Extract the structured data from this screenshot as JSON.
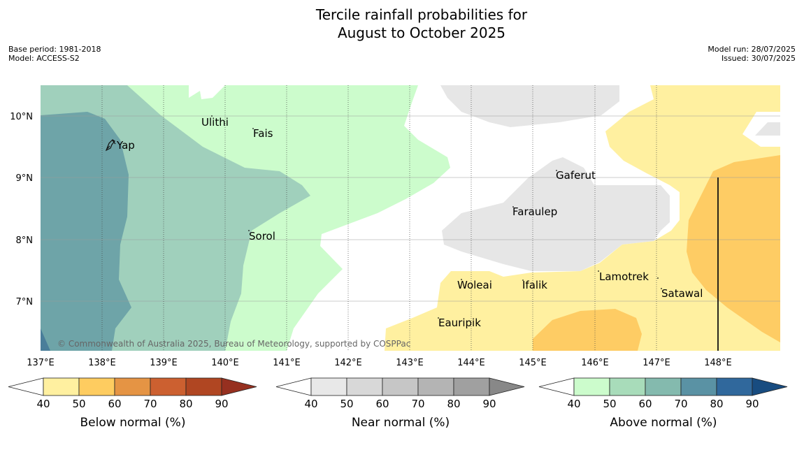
{
  "title": {
    "line1": "Tercile rainfall probabilities for",
    "line2": "August to October 2025"
  },
  "meta": {
    "base_period": "Base period: 1981-2018",
    "model": "Model: ACCESS-S2",
    "model_run": "Model run: 28/07/2025",
    "issued": "Issued: 30/07/2025"
  },
  "copyright": "© Commonwealth of Australia 2025, Bureau of Meteorology, supported by COSPPac",
  "axes": {
    "lon_ticks": [
      "137°E",
      "138°E",
      "139°E",
      "140°E",
      "141°E",
      "142°E",
      "143°E",
      "144°E",
      "145°E",
      "146°E",
      "147°E",
      "148°E"
    ],
    "lat_ticks": [
      "10°N",
      "9°N",
      "8°N",
      "7°N"
    ]
  },
  "places": [
    {
      "name": "Yap"
    },
    {
      "name": "Ulithi"
    },
    {
      "name": "Fais"
    },
    {
      "name": "Gaferut"
    },
    {
      "name": "Faraulep"
    },
    {
      "name": "Sorol"
    },
    {
      "name": "Lamotrek"
    },
    {
      "name": "Woleai"
    },
    {
      "name": "Ifalik"
    },
    {
      "name": "Satawal"
    },
    {
      "name": "Eauripik"
    }
  ],
  "legends": {
    "below": {
      "label": "Below normal (%)",
      "ticks": [
        "40",
        "50",
        "60",
        "70",
        "80",
        "90"
      ],
      "colors": [
        "#fff0a0",
        "#fecc60",
        "#e59444",
        "#cc6030",
        "#b04622",
        "#963020"
      ]
    },
    "near": {
      "label": "Near normal (%)",
      "ticks": [
        "40",
        "50",
        "60",
        "70",
        "80",
        "90"
      ],
      "colors": [
        "#e8e8e8",
        "#d8d8d8",
        "#c6c6c6",
        "#b4b4b4",
        "#a0a0a0",
        "#888888"
      ]
    },
    "above": {
      "label": "Above normal (%)",
      "ticks": [
        "40",
        "50",
        "60",
        "70",
        "80",
        "90"
      ],
      "colors": [
        "#ccfccc",
        "#a8dcba",
        "#84baae",
        "#5a92a4",
        "#30689c",
        "#184c80"
      ]
    }
  }
}
